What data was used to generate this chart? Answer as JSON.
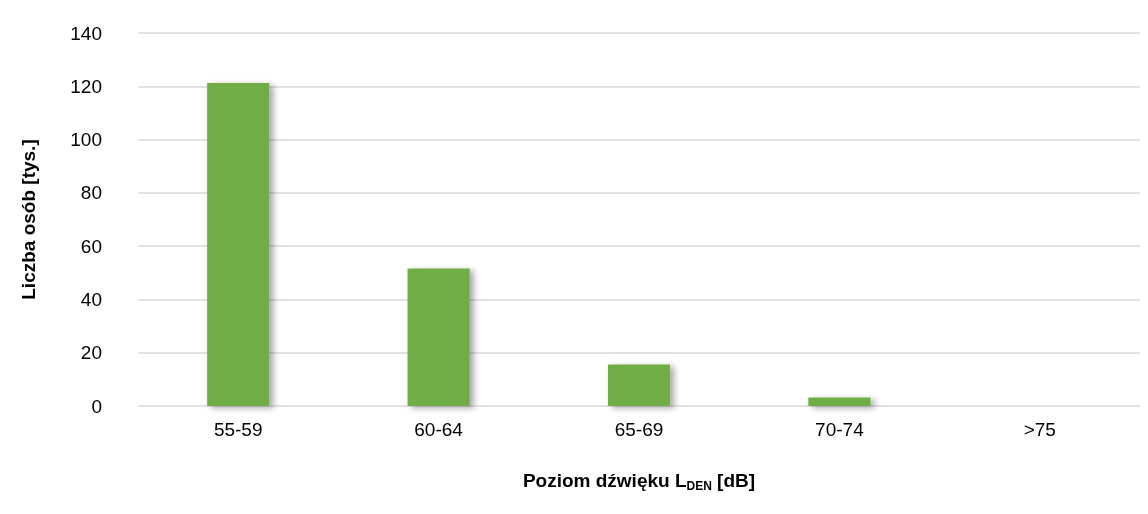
{
  "chart_data": {
    "type": "bar",
    "xlabel": "Poziom dźwięku L$_{DEN}$ [dB]",
    "ylabel": "Liczba osób [tys.]",
    "categories": [
      "55-59",
      "60-64",
      "65-69",
      "70-74",
      ">75"
    ],
    "values": [
      121.2,
      51.6,
      15.6,
      3.2,
      0
    ],
    "color": "#70ad47",
    "ylim": [
      0,
      140
    ],
    "yticks": [
      0,
      20,
      40,
      60,
      80,
      100,
      120,
      140
    ],
    "grid": "y"
  }
}
